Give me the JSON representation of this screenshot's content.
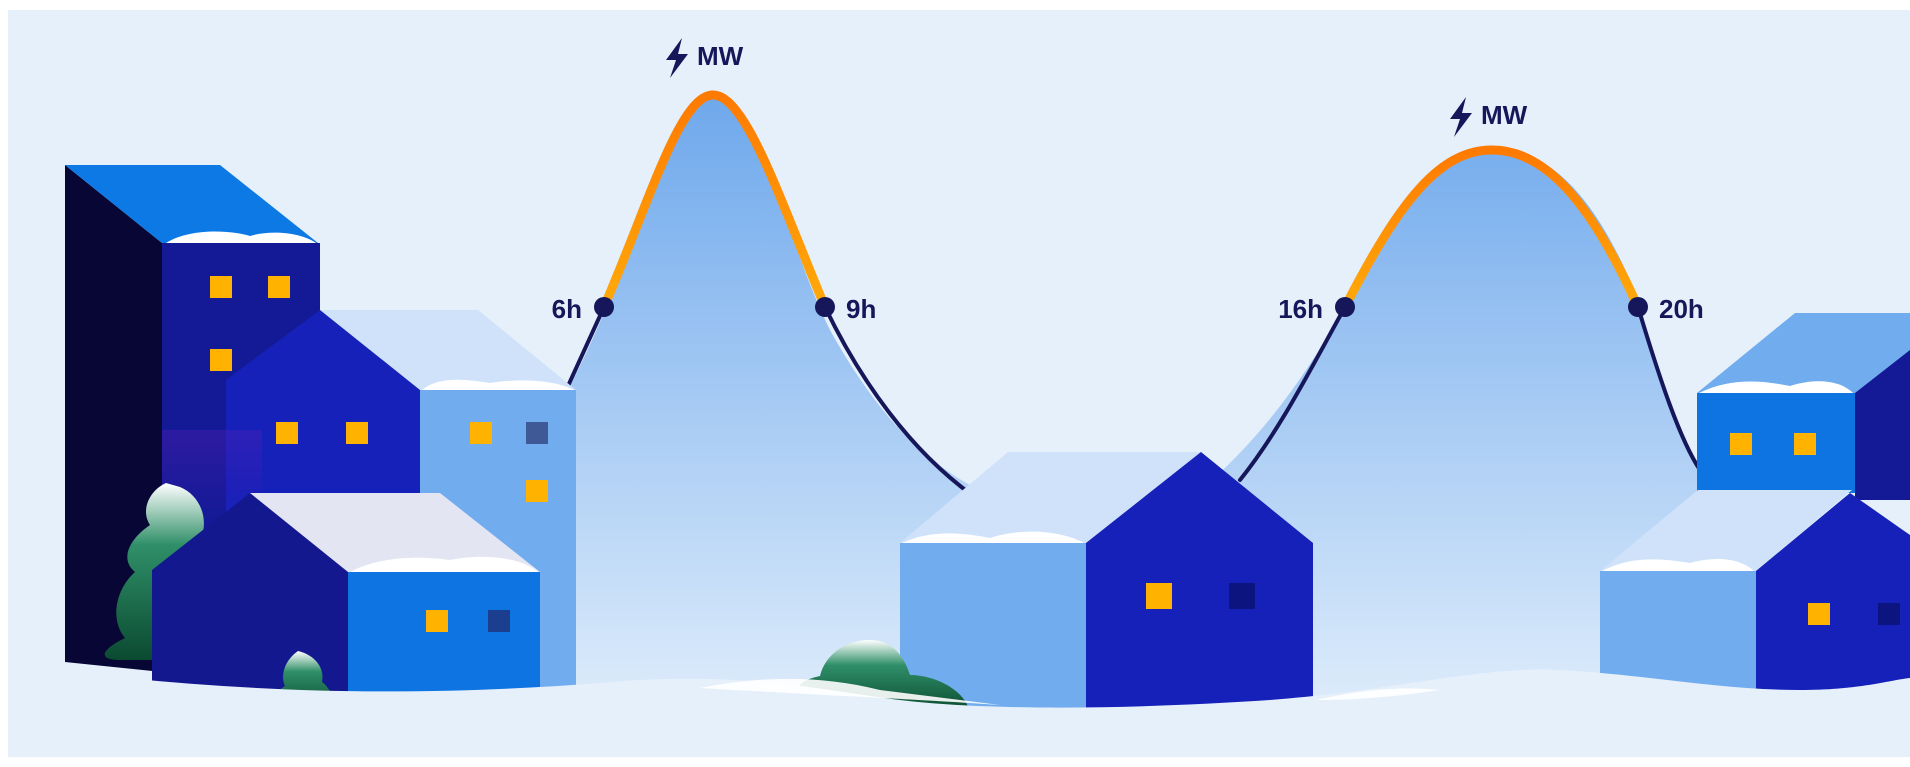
{
  "peaks": [
    {
      "label": "MW",
      "start_label": "6h",
      "end_label": "9h"
    },
    {
      "label": "MW",
      "start_label": "16h",
      "end_label": "20h"
    }
  ],
  "colors": {
    "sky": "#e6f0fb",
    "peak_curve": "#ff9f0a",
    "base_curve": "#15175a",
    "window_lit": "#ffb300",
    "tree": "#0f5b3d",
    "snow": "#ffffff"
  },
  "icons": [
    "lightning-icon"
  ]
}
